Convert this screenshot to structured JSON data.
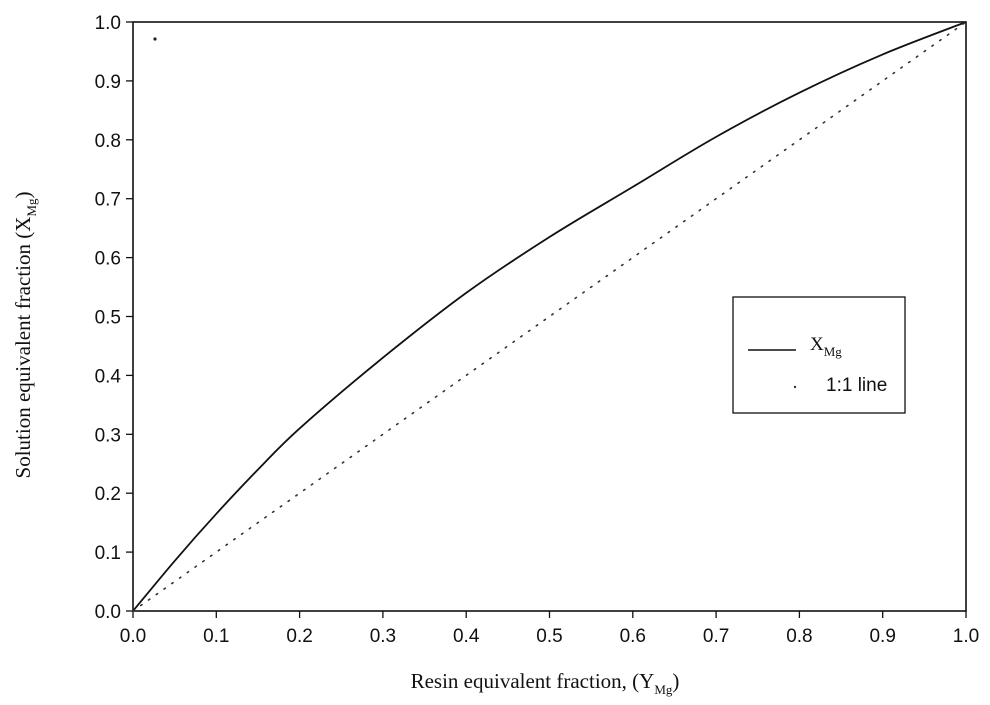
{
  "chart_data": {
    "type": "line",
    "xlabel": {
      "main": "Resin equivalent fraction, (Y",
      "sub": "Mg",
      "close": ")"
    },
    "ylabel": {
      "main": "Solution equivalent fraction (X",
      "sub": "Mg",
      "close": ")"
    },
    "xlim": [
      0.0,
      1.0
    ],
    "ylim": [
      0.0,
      1.0
    ],
    "x_ticks": [
      "0.0",
      "0.1",
      "0.2",
      "0.3",
      "0.4",
      "0.5",
      "0.6",
      "0.7",
      "0.8",
      "0.9",
      "1.0"
    ],
    "y_ticks": [
      "0.0",
      "0.1",
      "0.2",
      "0.3",
      "0.4",
      "0.5",
      "0.6",
      "0.7",
      "0.8",
      "0.9",
      "1.0"
    ],
    "grid": false,
    "legend_position": "right-middle",
    "series": [
      {
        "name_main": "X",
        "name_sub": "Mg",
        "style": "solid",
        "color": "#111111",
        "x": [
          0.0,
          0.05,
          0.1,
          0.15,
          0.2,
          0.3,
          0.4,
          0.5,
          0.6,
          0.7,
          0.8,
          0.9,
          1.0
        ],
        "y": [
          0.0,
          0.085,
          0.165,
          0.24,
          0.31,
          0.43,
          0.54,
          0.635,
          0.72,
          0.805,
          0.88,
          0.945,
          1.0
        ]
      },
      {
        "name": "1:1 line",
        "style": "dotted",
        "color": "#333333",
        "x": [
          0.0,
          1.0
        ],
        "y": [
          0.0,
          1.0
        ]
      }
    ],
    "legend_labels": {
      "xmg_main": "X",
      "xmg_sub": "Mg",
      "line_1to1": "1:1 line"
    }
  }
}
